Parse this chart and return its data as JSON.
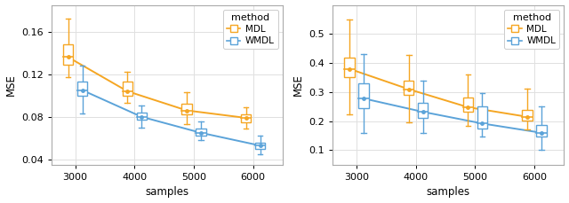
{
  "subplot1": {
    "ylabel": "MSE",
    "xlabel": "samples",
    "xlim": [
      2600,
      6500
    ],
    "ylim": [
      0.035,
      0.185
    ],
    "yticks": [
      0.04,
      0.08,
      0.12,
      0.16
    ],
    "xticks": [
      3000,
      4000,
      5000,
      6000
    ],
    "samples": [
      3000,
      4000,
      5000,
      6000
    ],
    "MDL": {
      "color": "#F5A623",
      "medians": [
        0.136,
        0.104,
        0.086,
        0.079
      ],
      "q1": [
        0.129,
        0.1,
        0.082,
        0.075
      ],
      "q3": [
        0.148,
        0.113,
        0.092,
        0.082
      ],
      "whislo": [
        0.117,
        0.093,
        0.073,
        0.069
      ],
      "whishi": [
        0.172,
        0.122,
        0.103,
        0.089
      ]
    },
    "WMDL": {
      "color": "#5BA3D9",
      "medians": [
        0.105,
        0.08,
        0.065,
        0.053
      ],
      "q1": [
        0.1,
        0.077,
        0.062,
        0.05
      ],
      "q3": [
        0.113,
        0.084,
        0.069,
        0.056
      ],
      "whislo": [
        0.083,
        0.07,
        0.058,
        0.045
      ],
      "whishi": [
        0.128,
        0.091,
        0.076,
        0.062
      ]
    }
  },
  "subplot2": {
    "ylabel": "MSE",
    "xlabel": "samples",
    "xlim": [
      2600,
      6500
    ],
    "ylim": [
      0.05,
      0.6
    ],
    "yticks": [
      0.1,
      0.2,
      0.3,
      0.4,
      0.5
    ],
    "xticks": [
      3000,
      4000,
      5000,
      6000
    ],
    "samples": [
      3000,
      4000,
      5000,
      6000
    ],
    "MDL": {
      "color": "#F5A623",
      "medians": [
        0.38,
        0.31,
        0.248,
        0.215
      ],
      "q1": [
        0.352,
        0.292,
        0.234,
        0.202
      ],
      "q3": [
        0.418,
        0.34,
        0.282,
        0.238
      ],
      "whislo": [
        0.222,
        0.196,
        0.183,
        0.172
      ],
      "whishi": [
        0.55,
        0.428,
        0.36,
        0.312
      ]
    },
    "WMDL": {
      "color": "#5BA3D9",
      "medians": [
        0.278,
        0.232,
        0.192,
        0.16
      ],
      "q1": [
        0.246,
        0.21,
        0.176,
        0.146
      ],
      "q3": [
        0.33,
        0.264,
        0.25,
        0.186
      ],
      "whislo": [
        0.158,
        0.158,
        0.146,
        0.1
      ],
      "whishi": [
        0.43,
        0.34,
        0.298,
        0.25
      ]
    }
  },
  "legend_title": "method",
  "legend_entries": [
    "MDL",
    "WMDL"
  ],
  "mdl_color": "#F5A623",
  "wmdl_color": "#5BA3D9",
  "bg_color": "#FFFFFF",
  "grid_color": "#E0E0E0",
  "figsize": [
    6.4,
    2.29
  ],
  "dpi": 100
}
